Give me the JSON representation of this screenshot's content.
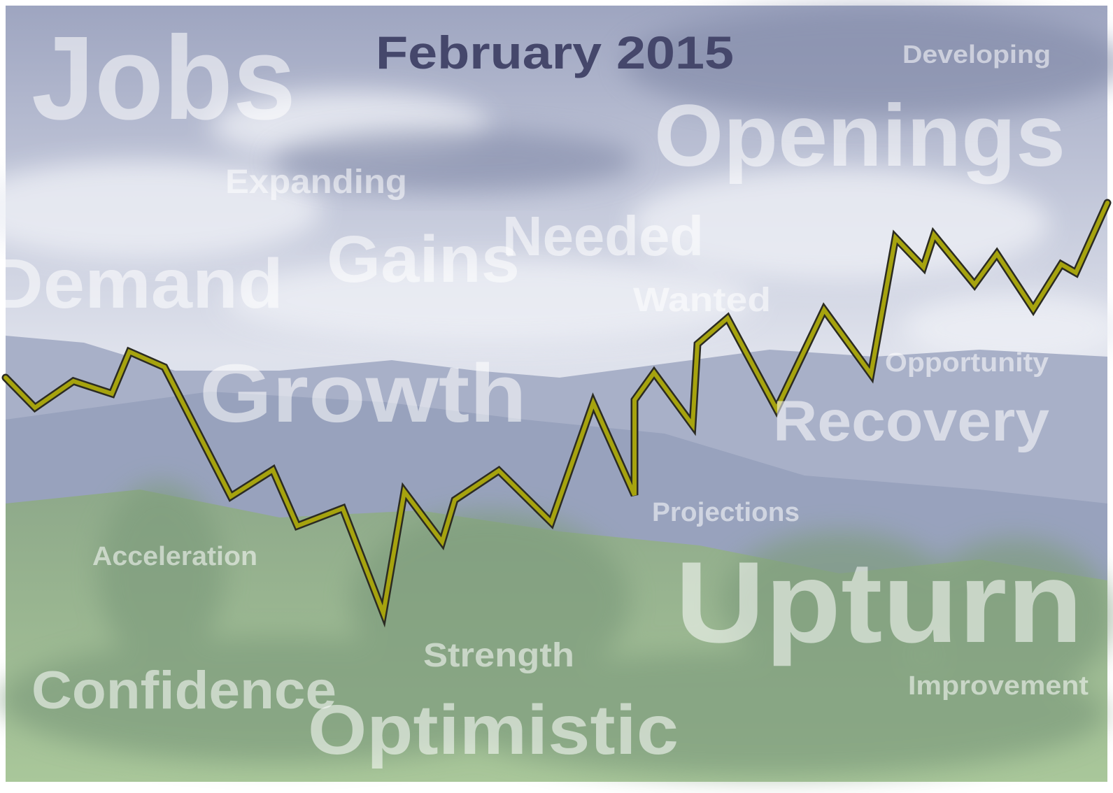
{
  "header": {
    "title": "February 2015"
  },
  "words": [
    "Jobs",
    "Developing",
    "Openings",
    "Expanding",
    "Gains",
    "Needed",
    "Demand",
    "Wanted",
    "Growth",
    "Opportunity",
    "Recovery",
    "Projections",
    "Acceleration",
    "Upturn",
    "Strength",
    "Confidence",
    "Improvement",
    "Optimistic"
  ]
}
